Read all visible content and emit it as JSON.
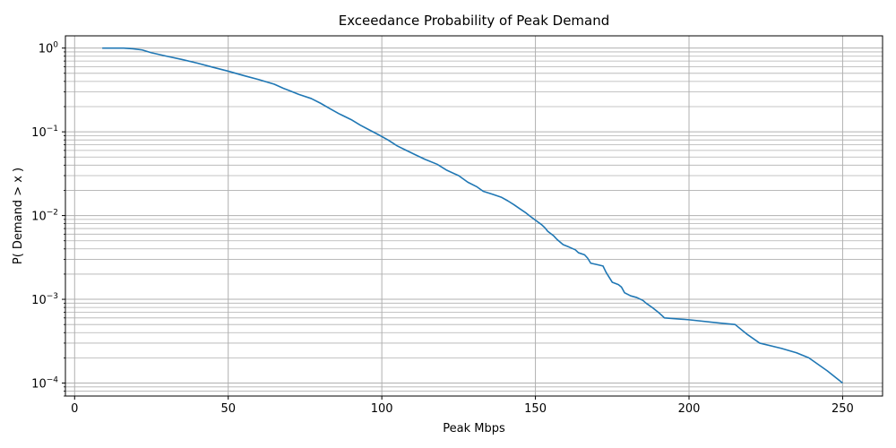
{
  "chart_data": {
    "type": "line",
    "title": "Exceedance Probability of Peak Demand",
    "xlabel": "Peak Mbps",
    "ylabel": "P( Demand > x )",
    "yscale": "log",
    "xlim": [
      -3,
      263
    ],
    "ylim": [
      7e-05,
      1.4
    ],
    "xticks": [
      0,
      50,
      100,
      150,
      200,
      250
    ],
    "xtick_labels": [
      "0",
      "50",
      "100",
      "150",
      "200",
      "250"
    ],
    "yticks": [
      0.0001,
      0.001,
      0.01,
      0.1,
      1
    ],
    "ytick_labels": [
      {
        "base": "10",
        "exp": "−4"
      },
      {
        "base": "10",
        "exp": "−3"
      },
      {
        "base": "10",
        "exp": "−2"
      },
      {
        "base": "10",
        "exp": "−1"
      },
      {
        "base": "10",
        "exp": "0"
      }
    ],
    "grid": "major and minor",
    "color": "#1f77b4",
    "series": [
      {
        "x": [
          9,
          12,
          16,
          19,
          22,
          25,
          30,
          35,
          40,
          45,
          50,
          55,
          60,
          65,
          68,
          70,
          73,
          77,
          80,
          83,
          86,
          90,
          93,
          96,
          99,
          102,
          105,
          108,
          111,
          114,
          118,
          121,
          125,
          128,
          131,
          133,
          136,
          139,
          141,
          143,
          145,
          147,
          148,
          150,
          152,
          153,
          154,
          156,
          157,
          159,
          161,
          163,
          164,
          166,
          167,
          168,
          170,
          172,
          173,
          175,
          177,
          178,
          179,
          181,
          183,
          185,
          186,
          188,
          190,
          191,
          192,
          200,
          210,
          215,
          219,
          223,
          230,
          235,
          239,
          245,
          250
        ],
        "y": [
          1.0,
          1.0,
          1.0,
          0.98,
          0.95,
          0.88,
          0.8,
          0.73,
          0.66,
          0.59,
          0.53,
          0.47,
          0.42,
          0.37,
          0.33,
          0.31,
          0.28,
          0.25,
          0.22,
          0.19,
          0.165,
          0.14,
          0.12,
          0.105,
          0.092,
          0.08,
          0.068,
          0.06,
          0.053,
          0.047,
          0.041,
          0.035,
          0.03,
          0.025,
          0.022,
          0.0195,
          0.018,
          0.0165,
          0.015,
          0.0135,
          0.012,
          0.0107,
          0.01,
          0.0088,
          0.0078,
          0.0072,
          0.0065,
          0.0057,
          0.0052,
          0.0045,
          0.0042,
          0.0039,
          0.0036,
          0.0034,
          0.0031,
          0.0027,
          0.0026,
          0.0025,
          0.0021,
          0.0016,
          0.0015,
          0.0014,
          0.0012,
          0.0011,
          0.00105,
          0.00097,
          0.0009,
          0.0008,
          0.0007,
          0.00065,
          0.0006,
          0.00057,
          0.00052,
          0.0005,
          0.00038,
          0.0003,
          0.00026,
          0.00023,
          0.0002,
          0.00014,
          0.0001
        ]
      }
    ]
  }
}
